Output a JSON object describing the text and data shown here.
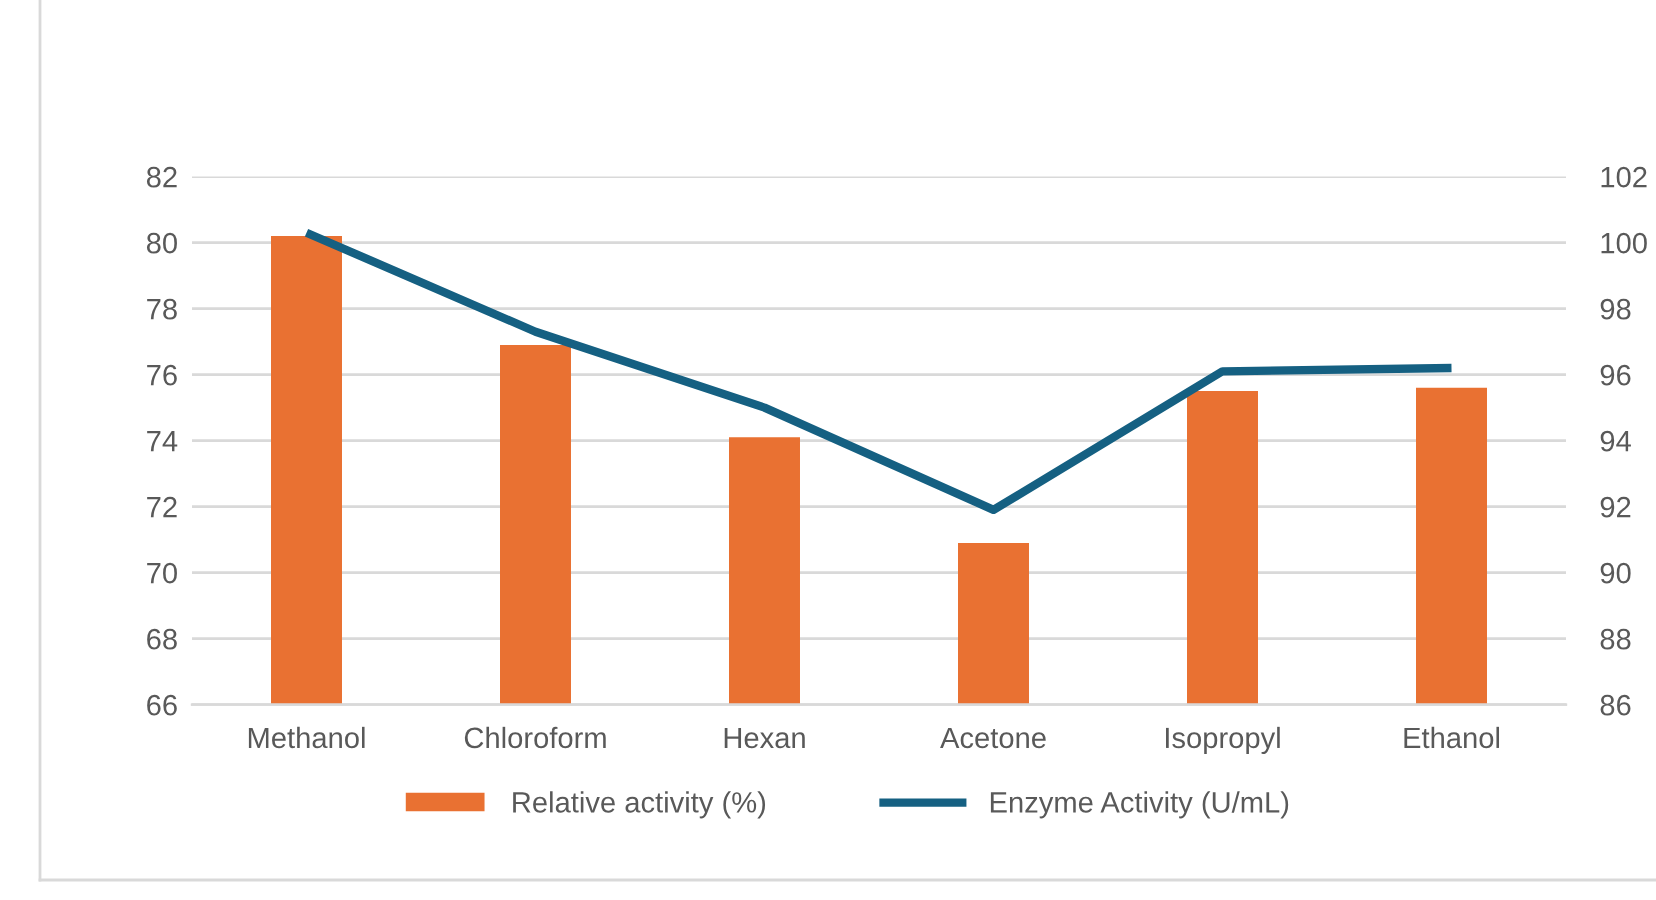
{
  "chart_data": {
    "type": "bar",
    "categories": [
      "Methanol",
      "Chloroform",
      "Hexan",
      "Acetone",
      "Isopropyl",
      "Ethanol"
    ],
    "series": [
      {
        "name": "Relative activity (%)",
        "color": "#e97132",
        "values": [
          80.2,
          76.9,
          74.1,
          70.9,
          75.5,
          75.6
        ]
      },
      {
        "name": "Enzyme Activity (U/mL)",
        "type": "line",
        "axis": "y2",
        "color": "#156082",
        "values": [
          100.3,
          97.3,
          95.0,
          91.9,
          96.1,
          96.2
        ]
      }
    ],
    "ylim": [
      66,
      82
    ],
    "yticks": [
      66,
      68,
      70,
      72,
      74,
      76,
      78,
      80,
      82
    ],
    "y2lim": [
      86,
      102
    ],
    "y2ticks": [
      86,
      88,
      90,
      92,
      94,
      96,
      98,
      100,
      102
    ],
    "grid": "y",
    "legend": "bottom"
  }
}
